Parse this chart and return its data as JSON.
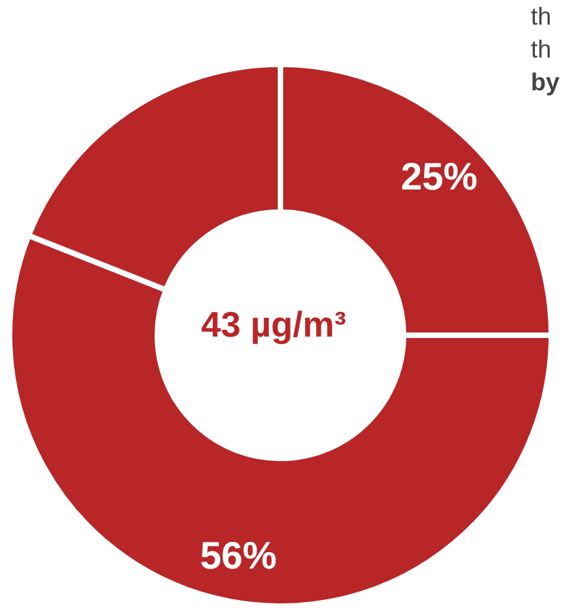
{
  "chart_data": {
    "type": "donut",
    "categories": [
      null,
      null,
      null
    ],
    "values": [
      25,
      56,
      19
    ],
    "colors": [
      "#b82628",
      "#b82628",
      "#b82628"
    ],
    "value_labels": [
      "25%",
      "56%",
      null
    ],
    "annotations": [
      "43 µg/m³",
      "th",
      "th",
      "by"
    ]
  }
}
